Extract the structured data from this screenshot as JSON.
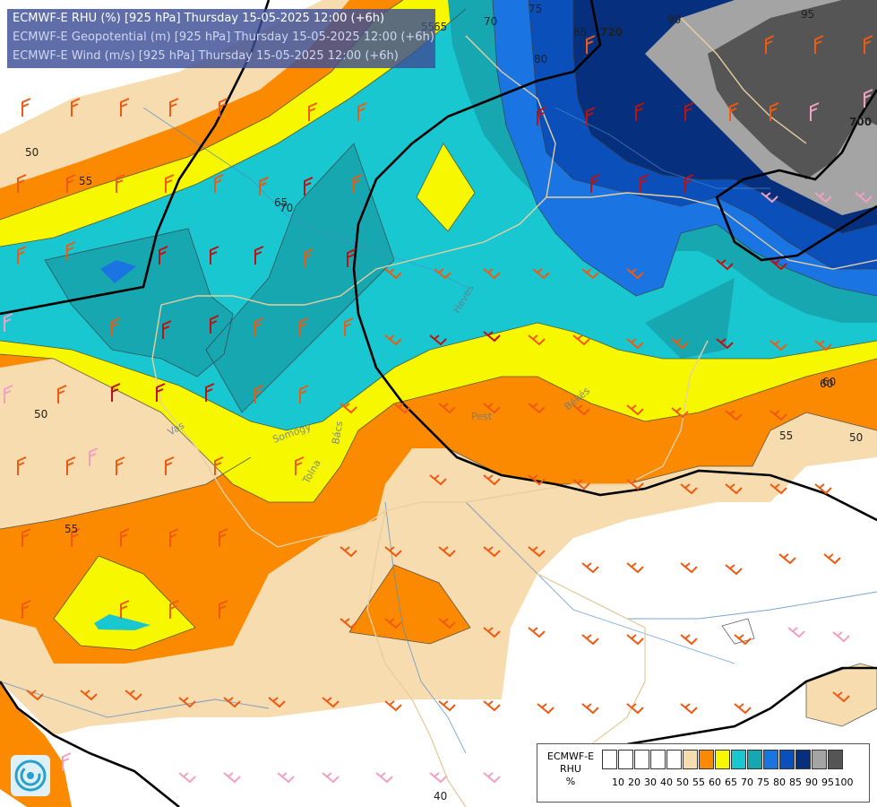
{
  "titles": {
    "line1": "ECMWF-E RHU (%) [925 hPa] Thursday 15-05-2025 12:00 (+6h)",
    "line2": "ECMWF-E Geopotential (m) [925 hPa] Thursday 15-05-2025 12:00 (+6h)",
    "line3": "ECMWF-E Wind (m/s) [925 hPa] Thursday 15-05-2025 12:00 (+6h)"
  },
  "legend": {
    "line1": "ECMWF-E",
    "line2": "RHU",
    "line3": "%",
    "ticks": [
      "10",
      "20",
      "30",
      "40",
      "50",
      "55",
      "60",
      "65",
      "70",
      "75",
      "80",
      "85",
      "90",
      "95",
      "100"
    ],
    "colors": [
      "#ffffff",
      "#ffffff",
      "#ffffff",
      "#ffffff",
      "#ffffff",
      "#f7dcaf",
      "#fb8a00",
      "#f7f700",
      "#19c7d1",
      "#17a7b0",
      "#1a74e2",
      "#0a4fba",
      "#062f7d",
      "#a4a4a4",
      "#555555"
    ]
  },
  "contour_labels": {
    "rhu": [
      "50",
      "55",
      "60",
      "65",
      "70",
      "75",
      "80",
      "85",
      "90",
      "95",
      "50",
      "55",
      "60",
      "65",
      "70",
      "55",
      "50",
      "55",
      "40"
    ],
    "geopotential": [
      "720",
      "700"
    ]
  },
  "place_labels": [
    "Heves",
    "Pest",
    "Békés",
    "Tolna",
    "Bács",
    "Vas",
    "Somogy"
  ],
  "colors": {
    "rhu_55": "#f7dcaf",
    "rhu_60": "#fb8a00",
    "rhu_65": "#f7f700",
    "rhu_70": "#19c7d1",
    "rhu_75": "#17a7b0",
    "rhu_80": "#1a74e2",
    "rhu_85": "#0a4fba",
    "rhu_90": "#062f7d",
    "rhu_95": "#a4a4a4",
    "rhu_100": "#555555",
    "geopotential_line": "#000000",
    "border_line": "#e6cfa0",
    "river_line": "#4a8ac9",
    "barb_red": "#c01010",
    "barb_orange": "#f05a10",
    "barb_pink": "#f0a0c0"
  },
  "icons": {
    "logo": "ecmwf-swirl-logo"
  }
}
